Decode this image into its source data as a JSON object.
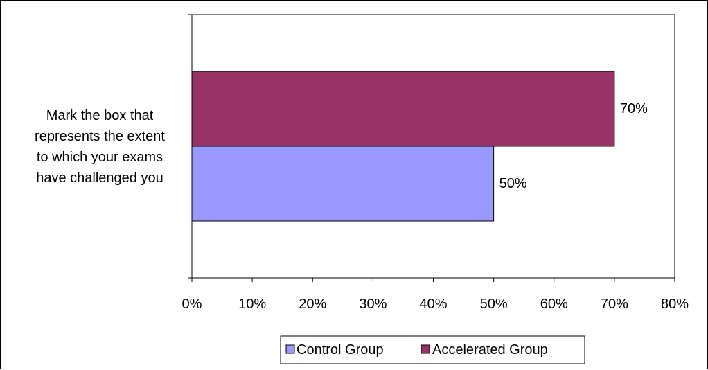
{
  "chart_data": {
    "type": "bar",
    "orientation": "horizontal",
    "categories": [
      "Mark the box that represents the extent to which your exams have challenged you"
    ],
    "category_label_lines": [
      "Mark the box that",
      "represents the extent",
      "to which your exams",
      "have challenged you"
    ],
    "series": [
      {
        "name": "Control Group",
        "values": [
          50
        ],
        "color": "#9999FF",
        "label": "50%"
      },
      {
        "name": "Accelerated Group",
        "values": [
          70
        ],
        "color": "#993366",
        "label": "70%"
      }
    ],
    "xlim": [
      0,
      80
    ],
    "xticks": [
      0,
      10,
      20,
      30,
      40,
      50,
      60,
      70,
      80
    ],
    "xtick_labels": [
      "0%",
      "10%",
      "20%",
      "30%",
      "40%",
      "50%",
      "60%",
      "70%",
      "80%"
    ],
    "grid": false,
    "legend_position": "bottom"
  }
}
